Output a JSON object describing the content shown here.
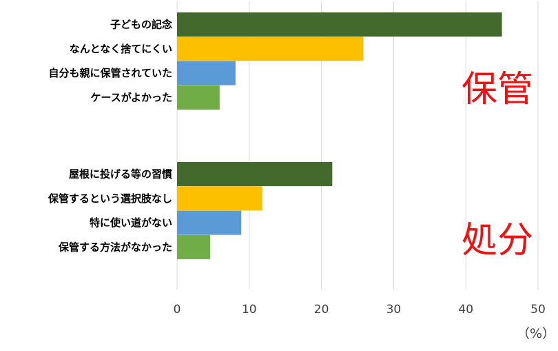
{
  "chart_data": {
    "type": "bar",
    "orientation": "horizontal",
    "xlim": [
      0,
      50
    ],
    "xticks": [
      "0",
      "10",
      "20",
      "30",
      "40",
      "50"
    ],
    "unit": "（%）",
    "grid": true,
    "groups": [
      {
        "label": "保管",
        "categories": [
          "子どもの記念",
          "なんとなく捨てにくい",
          "自分も親に保管されていた",
          "ケースがよかった"
        ],
        "values": [
          45,
          25.8,
          8.1,
          5.9
        ]
      },
      {
        "label": "処分",
        "categories": [
          "屋根に投げる等の習慣",
          "保管するという選択肢なし",
          "特に使い道がない",
          "保管する方法がなかった"
        ],
        "values": [
          21.5,
          11.8,
          8.9,
          4.6
        ]
      }
    ],
    "bar_colors": [
      "#44692c",
      "#fdc000",
      "#5a9ad6",
      "#70ad47"
    ]
  }
}
